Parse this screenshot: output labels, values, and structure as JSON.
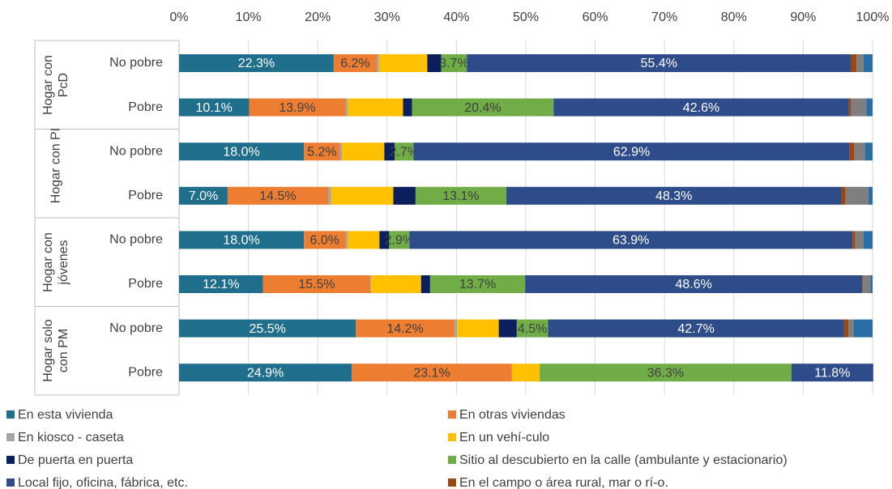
{
  "chart_data": {
    "type": "stacked_barh",
    "categories": [
      "No pobre",
      "Pobre",
      "No pobre",
      "Pobre",
      "No pobre",
      "Pobre",
      "No pobre",
      "Pobre"
    ],
    "groups": [
      "Hogar con PcD",
      "Hogar con PI",
      "Hogar con jóvenes",
      "Hogar solo con PM"
    ],
    "xlim": [
      0,
      100
    ],
    "xticks": [
      {
        "value": 0,
        "label": "0%"
      },
      {
        "value": 10,
        "label": "10%"
      },
      {
        "value": 20,
        "label": "20%"
      },
      {
        "value": 30,
        "label": "30%"
      },
      {
        "value": 40,
        "label": "40%"
      },
      {
        "value": 50,
        "label": "50%"
      },
      {
        "value": 60,
        "label": "60%"
      },
      {
        "value": 70,
        "label": "70%"
      },
      {
        "value": 80,
        "label": "80%"
      },
      {
        "value": 90,
        "label": "90%"
      },
      {
        "value": 100,
        "label": "100%"
      }
    ],
    "grid": true,
    "legend": "bottom",
    "series": [
      {
        "name": "En esta vivienda",
        "color": "#1f6e8c",
        "label_color": "#ffffff",
        "values": [
          22.3,
          10.1,
          18.0,
          7.0,
          18.0,
          12.1,
          25.5,
          24.9
        ],
        "value_labels": [
          "22.3%",
          "10.1%",
          "18.0%",
          "7.0%",
          "18.0%",
          "12.1%",
          "25.5%",
          "24.9%"
        ]
      },
      {
        "name": "En otras viviendas",
        "color": "#ed7d31",
        "label_color": "#404040",
        "values": [
          6.2,
          13.9,
          5.2,
          14.5,
          6.0,
          15.5,
          14.2,
          23.1
        ],
        "value_labels": [
          "6.2%",
          "13.9%",
          "5.2%",
          "14.5%",
          "6.0%",
          "15.5%",
          "14.2%",
          "23.1%"
        ]
      },
      {
        "name": "En kiosco - caseta",
        "color": "#a5a5a5",
        "values": [
          0.3,
          0.3,
          0.3,
          0.4,
          0.3,
          0.1,
          0.4,
          0
        ]
      },
      {
        "name": "En un vehí-culo",
        "color": "#ffc000",
        "values": [
          7.0,
          8.0,
          6.1,
          9.0,
          4.6,
          7.2,
          6.0,
          4.0
        ]
      },
      {
        "name": "De puerta en puerta",
        "color": "#0a1f5c",
        "values": [
          2.0,
          1.3,
          1.5,
          3.2,
          1.4,
          1.3,
          2.6,
          0
        ]
      },
      {
        "name": "Sitio al descubierto en la calle (ambulante y estacionario)",
        "color": "#70ad47",
        "label_color": "#404040",
        "values": [
          3.7,
          20.4,
          2.7,
          13.1,
          2.9,
          13.7,
          4.5,
          36.3
        ],
        "value_labels": [
          "3.7%",
          "20.4%",
          "2.7%",
          "13.1%",
          "2.9%",
          "13.7%",
          "4.5%",
          "36.3%"
        ]
      },
      {
        "name": "Local fijo, oficina, fábrica, etc.",
        "color": "#2e4b8a",
        "label_color": "#ffffff",
        "values": [
          55.4,
          42.6,
          62.9,
          48.3,
          63.9,
          48.6,
          42.7,
          11.8
        ],
        "value_labels": [
          "55.4%",
          "42.6%",
          "62.9%",
          "48.3%",
          "63.9%",
          "48.6%",
          "42.7%",
          "11.8%"
        ]
      },
      {
        "name": "En el campo o área rural, mar o rí-o.",
        "color": "#9e480e",
        "values": [
          0.8,
          0.3,
          0.7,
          0.6,
          0.4,
          0.1,
          0.6,
          0
        ]
      },
      {
        "color": "#7f7f7f",
        "values": [
          1.0,
          2.2,
          1.5,
          3.3,
          1.2,
          1.1,
          0.8,
          0
        ]
      },
      {
        "color": "#2a6ea6",
        "values": [
          1.3,
          0.9,
          1.1,
          0.6,
          1.3,
          0.3,
          2.7,
          0
        ]
      }
    ]
  }
}
